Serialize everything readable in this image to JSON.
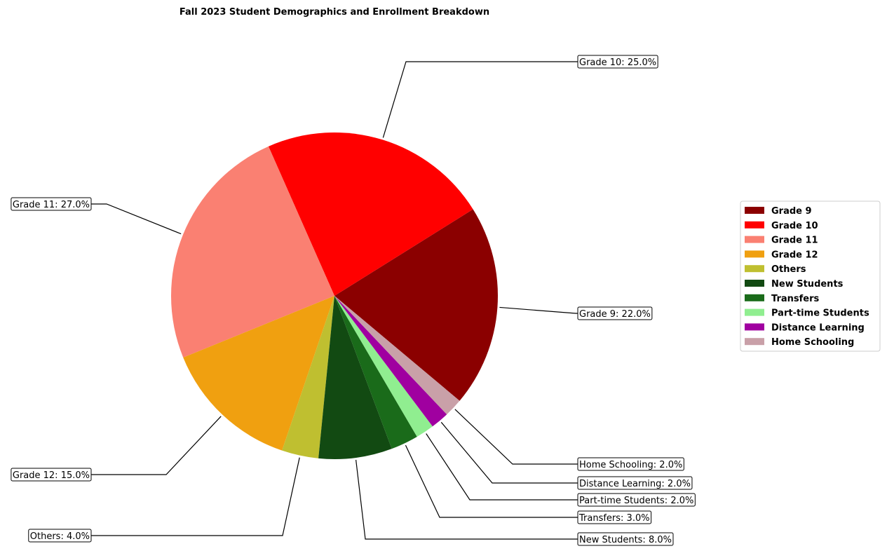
{
  "chart_data": {
    "type": "pie",
    "title": "Fall 2023 Student Demographics and Enrollment Breakdown",
    "categories": [
      "Grade 9",
      "Grade 10",
      "Grade 11",
      "Grade 12",
      "Others",
      "New Students",
      "Transfers",
      "Part-time Students",
      "Distance Learning",
      "Home Schooling"
    ],
    "values": [
      22.0,
      25.0,
      27.0,
      15.0,
      4.0,
      8.0,
      3.0,
      2.0,
      2.0,
      2.0
    ],
    "colors": [
      "#8b0000",
      "#ff0000",
      "#fa8072",
      "#f0a010",
      "#bfbf30",
      "#124a12",
      "#1a6b1a",
      "#90ee90",
      "#a000a0",
      "#c9a0a8"
    ],
    "value_labels": [
      "Grade 9: 22.0%",
      "Grade 10: 25.0%",
      "Grade 11: 27.0%",
      "Grade 12: 15.0%",
      "Others: 4.0%",
      "New Students: 8.0%",
      "Transfers: 3.0%",
      "Part-time Students: 2.0%",
      "Distance Learning: 2.0%",
      "Home Schooling: 2.0%"
    ],
    "start_angle_deg": -40,
    "direction": "counterclockwise",
    "legend_position": "right"
  }
}
